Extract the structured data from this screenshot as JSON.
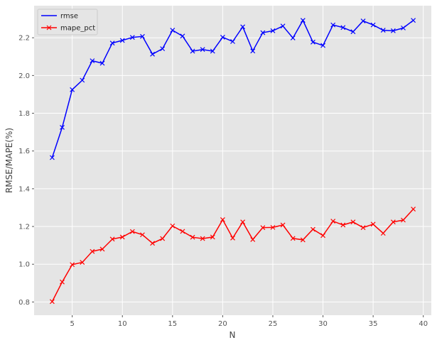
{
  "chart_data": {
    "type": "line",
    "title": "",
    "xlabel": "N",
    "ylabel": "RMSE/MAPE(%)",
    "xlim": [
      1.2,
      40.8
    ],
    "ylim": [
      0.73,
      2.37
    ],
    "xticks": [
      5,
      10,
      15,
      20,
      25,
      30,
      35,
      40
    ],
    "yticks": [
      0.8,
      1.0,
      1.2,
      1.4,
      1.6,
      1.8,
      2.0,
      2.2
    ],
    "grid": true,
    "legend": "top-left",
    "x": [
      3,
      4,
      5,
      6,
      7,
      8,
      9,
      10,
      11,
      12,
      13,
      14,
      15,
      16,
      17,
      18,
      19,
      20,
      21,
      22,
      23,
      24,
      25,
      26,
      27,
      28,
      29,
      30,
      31,
      32,
      33,
      34,
      35,
      36,
      37,
      38,
      39
    ],
    "series": [
      {
        "name": "rmse",
        "color": "#0000ff",
        "marker": "x",
        "values": [
          1.565,
          1.725,
          1.925,
          1.975,
          2.078,
          2.065,
          2.172,
          2.186,
          2.202,
          2.207,
          2.113,
          2.142,
          2.24,
          2.209,
          2.129,
          2.138,
          2.129,
          2.203,
          2.18,
          2.258,
          2.13,
          2.227,
          2.237,
          2.262,
          2.199,
          2.292,
          2.177,
          2.159,
          2.268,
          2.254,
          2.232,
          2.289,
          2.268,
          2.24,
          2.237,
          2.252,
          2.292
        ]
      },
      {
        "name": "mape_pct",
        "color": "#ff0000",
        "marker": "x",
        "values": [
          0.802,
          0.906,
          0.998,
          1.01,
          1.068,
          1.08,
          1.133,
          1.144,
          1.173,
          1.156,
          1.111,
          1.136,
          1.203,
          1.174,
          1.143,
          1.136,
          1.144,
          1.236,
          1.139,
          1.224,
          1.131,
          1.194,
          1.195,
          1.208,
          1.137,
          1.129,
          1.185,
          1.152,
          1.228,
          1.208,
          1.224,
          1.194,
          1.212,
          1.164,
          1.224,
          1.234,
          1.292
        ]
      }
    ]
  }
}
